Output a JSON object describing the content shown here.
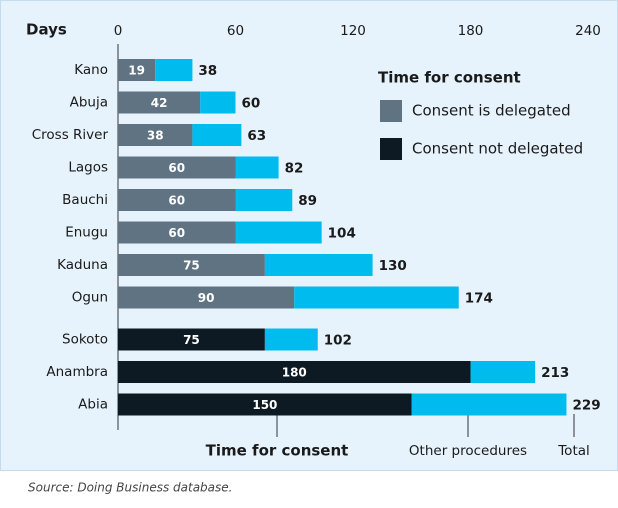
{
  "chart_data": {
    "type": "stacked-horizontal-bar",
    "axis_label": "Days",
    "categories": [
      "Kano",
      "Abuja",
      "Cross River",
      "Lagos",
      "Bauchi",
      "Enugu",
      "Kaduna",
      "Ogun",
      "Sokoto",
      "Anambra",
      "Abia"
    ],
    "series": [
      {
        "name": "Time for consent",
        "colors": [
          "#5f7382",
          "#5f7382",
          "#5f7382",
          "#5f7382",
          "#5f7382",
          "#5f7382",
          "#5f7382",
          "#5f7382",
          "#0d1a24",
          "#0d1a24",
          "#0d1a24"
        ],
        "values": [
          19,
          42,
          38,
          60,
          60,
          60,
          75,
          90,
          75,
          180,
          150
        ]
      },
      {
        "name": "Other procedures",
        "color": "#00bbee",
        "values": [
          19,
          18,
          25,
          22,
          29,
          44,
          55,
          84,
          27,
          33,
          79
        ]
      }
    ],
    "totals_label": "Total",
    "totals": [
      38,
      60,
      63,
      82,
      89,
      104,
      130,
      174,
      102,
      213,
      229
    ],
    "xlim": [
      0,
      240
    ],
    "xticks": [
      0,
      60,
      120,
      180,
      240
    ],
    "legend": {
      "title": "Time for consent",
      "items": [
        {
          "label": "Consent is delegated",
          "color": "#5f7382"
        },
        {
          "label": "Consent not delegated",
          "color": "#0d1a24"
        }
      ]
    },
    "source": "Source: Doing Business database."
  }
}
